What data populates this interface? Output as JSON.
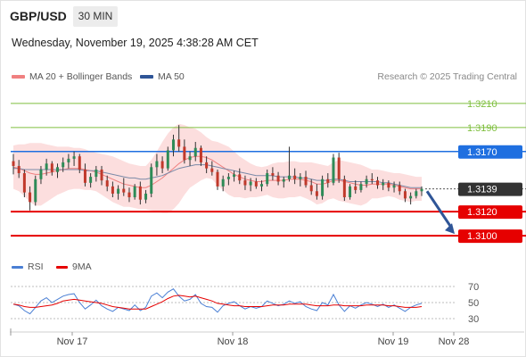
{
  "header": {
    "symbol": "GBP/USD",
    "timeframe": "30 MIN",
    "datetime": "Wednesday, November 19, 2025 4:38:28 AM CET"
  },
  "legend": {
    "items": [
      {
        "label": "MA 20 + Bollinger Bands",
        "color": "#f08080"
      },
      {
        "label": "MA 50",
        "color": "#2f5597"
      }
    ],
    "credit": "Research © 2025 Trading Central"
  },
  "rsi_legend": {
    "items": [
      {
        "label": "RSI",
        "color": "#4a7fd4"
      },
      {
        "label": "9MA",
        "color": "#e60000"
      }
    ]
  },
  "colors": {
    "green_level": "#7fbf3f",
    "blue_level": "#1f6fe0",
    "red_level": "#e60000",
    "last_price": "#333333",
    "bull_candle": "#2e8b57",
    "bear_candle": "#c0392b",
    "band_fill": "#fbd0d0",
    "forecast_arrow": "#2f5597"
  },
  "chart_data": {
    "type": "candlestick",
    "price_range": [
      1.3086,
      1.3224
    ],
    "levels": [
      {
        "value": 1.321,
        "label": "1.3210",
        "kind": "resistance",
        "color": "#7fbf3f"
      },
      {
        "value": 1.319,
        "label": "1.3190",
        "kind": "resistance",
        "color": "#7fbf3f"
      },
      {
        "value": 1.317,
        "label": "1.3170",
        "kind": "pivot",
        "color": "#1f6fe0"
      },
      {
        "value": 1.312,
        "label": "1.3120",
        "kind": "support",
        "color": "#e60000"
      },
      {
        "value": 1.31,
        "label": "1.3100",
        "kind": "support",
        "color": "#e60000"
      }
    ],
    "last_price": {
      "value": 1.3139,
      "label": "1.3139"
    },
    "forecast_arrow": {
      "from": 1.3137,
      "to": 1.31
    },
    "x_labels": [
      "Nov 17",
      "Nov 18",
      "Nov 19",
      "Nov 28"
    ],
    "candles": [
      [
        1.3162,
        1.3168,
        1.3151,
        1.3158
      ],
      [
        1.3158,
        1.3163,
        1.3148,
        1.3152
      ],
      [
        1.3152,
        1.3155,
        1.3132,
        1.3136
      ],
      [
        1.3136,
        1.3141,
        1.3121,
        1.3128
      ],
      [
        1.3128,
        1.315,
        1.3125,
        1.3147
      ],
      [
        1.3147,
        1.3158,
        1.3143,
        1.3155
      ],
      [
        1.3155,
        1.3164,
        1.315,
        1.316
      ],
      [
        1.316,
        1.3162,
        1.315,
        1.3153
      ],
      [
        1.3153,
        1.316,
        1.3148,
        1.3157
      ],
      [
        1.3157,
        1.3165,
        1.3153,
        1.3161
      ],
      [
        1.3161,
        1.3168,
        1.3156,
        1.3164
      ],
      [
        1.3164,
        1.317,
        1.3158,
        1.3166
      ],
      [
        1.3166,
        1.3168,
        1.3152,
        1.3155
      ],
      [
        1.3155,
        1.316,
        1.3141,
        1.3144
      ],
      [
        1.3144,
        1.3152,
        1.314,
        1.3149
      ],
      [
        1.3149,
        1.3158,
        1.3145,
        1.3155
      ],
      [
        1.3155,
        1.3158,
        1.3142,
        1.3146
      ],
      [
        1.3146,
        1.315,
        1.3137,
        1.3141
      ],
      [
        1.3141,
        1.3145,
        1.3132,
        1.3135
      ],
      [
        1.3135,
        1.3142,
        1.313,
        1.3139
      ],
      [
        1.3139,
        1.3148,
        1.3133,
        1.3136
      ],
      [
        1.3136,
        1.314,
        1.3128,
        1.3132
      ],
      [
        1.3132,
        1.3143,
        1.313,
        1.3141
      ],
      [
        1.3141,
        1.3145,
        1.3126,
        1.313
      ],
      [
        1.313,
        1.3138,
        1.3127,
        1.3135
      ],
      [
        1.3135,
        1.316,
        1.3132,
        1.3157
      ],
      [
        1.3157,
        1.3168,
        1.315,
        1.3162
      ],
      [
        1.3162,
        1.3166,
        1.3152,
        1.3156
      ],
      [
        1.3156,
        1.3174,
        1.3154,
        1.3171
      ],
      [
        1.3171,
        1.3184,
        1.3166,
        1.318
      ],
      [
        1.318,
        1.3192,
        1.317,
        1.3174
      ],
      [
        1.3174,
        1.318,
        1.316,
        1.3163
      ],
      [
        1.3163,
        1.317,
        1.3158,
        1.3166
      ],
      [
        1.3166,
        1.3178,
        1.3162,
        1.3173
      ],
      [
        1.3173,
        1.3175,
        1.3158,
        1.3161
      ],
      [
        1.3161,
        1.3166,
        1.3152,
        1.3156
      ],
      [
        1.3156,
        1.3162,
        1.315,
        1.3153
      ],
      [
        1.3153,
        1.3155,
        1.3138,
        1.3141
      ],
      [
        1.3141,
        1.315,
        1.3137,
        1.3147
      ],
      [
        1.3147,
        1.3152,
        1.3142,
        1.3149
      ],
      [
        1.3149,
        1.3154,
        1.3145,
        1.3151
      ],
      [
        1.3151,
        1.3156,
        1.3143,
        1.3146
      ],
      [
        1.3146,
        1.315,
        1.3138,
        1.3142
      ],
      [
        1.3142,
        1.3148,
        1.3137,
        1.3145
      ],
      [
        1.3145,
        1.3148,
        1.3139,
        1.3141
      ],
      [
        1.3141,
        1.3146,
        1.3137,
        1.3143
      ],
      [
        1.3143,
        1.3155,
        1.3141,
        1.3152
      ],
      [
        1.3152,
        1.3157,
        1.3146,
        1.315
      ],
      [
        1.315,
        1.3153,
        1.3142,
        1.3145
      ],
      [
        1.3145,
        1.3149,
        1.314,
        1.3147
      ],
      [
        1.3147,
        1.3174,
        1.3145,
        1.315
      ],
      [
        1.315,
        1.3156,
        1.3143,
        1.3147
      ],
      [
        1.3147,
        1.3152,
        1.3141,
        1.3149
      ],
      [
        1.3149,
        1.3154,
        1.314,
        1.3142
      ],
      [
        1.3142,
        1.3147,
        1.3134,
        1.3137
      ],
      [
        1.3137,
        1.3143,
        1.313,
        1.3133
      ],
      [
        1.3133,
        1.315,
        1.313,
        1.3147
      ],
      [
        1.3147,
        1.3152,
        1.314,
        1.3144
      ],
      [
        1.3144,
        1.3168,
        1.3142,
        1.3165
      ],
      [
        1.3165,
        1.3169,
        1.3144,
        1.3147
      ],
      [
        1.3147,
        1.315,
        1.3129,
        1.3132
      ],
      [
        1.3132,
        1.3143,
        1.313,
        1.3141
      ],
      [
        1.3141,
        1.3146,
        1.3135,
        1.3138
      ],
      [
        1.3138,
        1.3145,
        1.3136,
        1.3143
      ],
      [
        1.3143,
        1.315,
        1.314,
        1.3147
      ],
      [
        1.3147,
        1.3152,
        1.3143,
        1.3146
      ],
      [
        1.3146,
        1.3149,
        1.3139,
        1.3142
      ],
      [
        1.3142,
        1.3147,
        1.3138,
        1.3144
      ],
      [
        1.3144,
        1.3146,
        1.3137,
        1.314
      ],
      [
        1.314,
        1.3145,
        1.3136,
        1.3142
      ],
      [
        1.3142,
        1.3145,
        1.3134,
        1.3137
      ],
      [
        1.3137,
        1.3139,
        1.3128,
        1.3131
      ],
      [
        1.3131,
        1.3136,
        1.3126,
        1.3133
      ],
      [
        1.3133,
        1.3139,
        1.3131,
        1.3137
      ],
      [
        1.3137,
        1.3141,
        1.3133,
        1.3139
      ]
    ],
    "ma50": [
      1.3156,
      1.3156,
      1.3155,
      1.3155,
      1.3155,
      1.3155,
      1.3155,
      1.3155,
      1.3155,
      1.3155,
      1.3155,
      1.3155,
      1.3155,
      1.3154,
      1.3154,
      1.3154,
      1.3153,
      1.3152,
      1.3151,
      1.315,
      1.3149,
      1.3148,
      1.3148,
      1.3147,
      1.3147,
      1.3148,
      1.3149,
      1.315,
      1.3152,
      1.3154,
      1.3156,
      1.3157,
      1.3158,
      1.3159,
      1.3159,
      1.3159,
      1.3158,
      1.3157,
      1.3156,
      1.3155,
      1.3154,
      1.3153,
      1.3152,
      1.3151,
      1.315,
      1.315,
      1.315,
      1.315,
      1.3149,
      1.3149,
      1.3149,
      1.3149,
      1.3148,
      1.3148,
      1.3147,
      1.3146,
      1.3146,
      1.3146,
      1.3147,
      1.3147,
      1.3146,
      1.3145,
      1.3145,
      1.3145,
      1.3145,
      1.3145,
      1.3145,
      1.3144,
      1.3144,
      1.3143,
      1.3142,
      1.3141,
      1.314,
      1.314,
      1.314
    ],
    "ma20": [
      1.3157,
      1.3156,
      1.3154,
      1.3152,
      1.3151,
      1.3151,
      1.3152,
      1.3153,
      1.3154,
      1.3155,
      1.3156,
      1.3156,
      1.3156,
      1.3155,
      1.3154,
      1.3153,
      1.3151,
      1.3149,
      1.3147,
      1.3145,
      1.3143,
      1.3142,
      1.3141,
      1.314,
      1.314,
      1.3142,
      1.3145,
      1.3148,
      1.3152,
      1.3156,
      1.316,
      1.3163,
      1.3165,
      1.3166,
      1.3166,
      1.3165,
      1.3163,
      1.316,
      1.3157,
      1.3154,
      1.3151,
      1.3149,
      1.3147,
      1.3146,
      1.3145,
      1.3145,
      1.3146,
      1.3146,
      1.3146,
      1.3146,
      1.3147,
      1.3147,
      1.3147,
      1.3146,
      1.3145,
      1.3143,
      1.3143,
      1.3144,
      1.3146,
      1.3146,
      1.3145,
      1.3144,
      1.3143,
      1.3142,
      1.3142,
      1.3143,
      1.3143,
      1.3143,
      1.3143,
      1.3142,
      1.3141,
      1.314,
      1.3139,
      1.3139,
      1.3139
    ],
    "bb_upper": [
      1.3175,
      1.3176,
      1.3176,
      1.3177,
      1.3177,
      1.3177,
      1.3176,
      1.3175,
      1.3174,
      1.3174,
      1.3174,
      1.3173,
      1.3173,
      1.3172,
      1.317,
      1.3169,
      1.3168,
      1.3167,
      1.3166,
      1.3164,
      1.3162,
      1.316,
      1.3159,
      1.3158,
      1.3158,
      1.3163,
      1.317,
      1.3178,
      1.3185,
      1.319,
      1.3193,
      1.3192,
      1.319,
      1.3189,
      1.3186,
      1.3182,
      1.3179,
      1.3178,
      1.3176,
      1.3174,
      1.317,
      1.3166,
      1.3163,
      1.316,
      1.3158,
      1.3157,
      1.3158,
      1.316,
      1.3161,
      1.3161,
      1.3162,
      1.3162,
      1.3161,
      1.3161,
      1.3161,
      1.316,
      1.3159,
      1.3158,
      1.3161,
      1.3163,
      1.3162,
      1.3161,
      1.316,
      1.3159,
      1.3157,
      1.3155,
      1.3155,
      1.3154,
      1.3153,
      1.3152,
      1.3152,
      1.3151,
      1.315,
      1.3149,
      1.3149
    ],
    "bb_lower": [
      1.3139,
      1.3137,
      1.3133,
      1.3128,
      1.3125,
      1.3125,
      1.3128,
      1.3131,
      1.3134,
      1.3136,
      1.3138,
      1.3139,
      1.3139,
      1.3138,
      1.3138,
      1.3137,
      1.3134,
      1.3131,
      1.3128,
      1.3126,
      1.3124,
      1.3124,
      1.3123,
      1.3122,
      1.3122,
      1.3121,
      1.312,
      1.3119,
      1.3119,
      1.3122,
      1.3127,
      1.3134,
      1.314,
      1.3143,
      1.3146,
      1.3148,
      1.3147,
      1.3142,
      1.3138,
      1.3134,
      1.3132,
      1.3132,
      1.3131,
      1.3132,
      1.3132,
      1.3133,
      1.3134,
      1.3132,
      1.3131,
      1.3131,
      1.3132,
      1.3132,
      1.3133,
      1.3131,
      1.3129,
      1.3126,
      1.3127,
      1.313,
      1.3131,
      1.3129,
      1.3128,
      1.3127,
      1.3126,
      1.3125,
      1.3127,
      1.3131,
      1.3131,
      1.3132,
      1.3133,
      1.3132,
      1.313,
      1.3129,
      1.3128,
      1.3129,
      1.3129
    ],
    "rsi": {
      "range": [
        0,
        100
      ],
      "ticks": [
        70,
        50,
        30
      ],
      "ticks_labels": [
        "70",
        "50",
        "30"
      ],
      "values": [
        48,
        46,
        40,
        36,
        44,
        52,
        56,
        50,
        54,
        58,
        60,
        61,
        50,
        42,
        47,
        53,
        46,
        42,
        39,
        44,
        42,
        40,
        47,
        40,
        44,
        58,
        62,
        56,
        63,
        67,
        58,
        52,
        54,
        60,
        49,
        45,
        44,
        38,
        46,
        49,
        51,
        46,
        42,
        45,
        43,
        45,
        52,
        49,
        46,
        48,
        52,
        49,
        51,
        45,
        42,
        40,
        50,
        47,
        60,
        47,
        39,
        46,
        43,
        47,
        50,
        48,
        45,
        48,
        44,
        47,
        43,
        39,
        44,
        47,
        49
      ],
      "ma9": [
        48,
        47,
        45,
        44,
        44,
        45,
        46,
        47,
        49,
        52,
        53,
        54,
        53,
        52,
        51,
        50,
        49,
        47,
        45,
        44,
        43,
        42,
        42,
        42,
        42,
        45,
        48,
        51,
        55,
        58,
        59,
        58,
        57,
        58,
        56,
        54,
        52,
        49,
        48,
        47,
        46,
        46,
        45,
        45,
        45,
        45,
        46,
        47,
        47,
        47,
        48,
        48,
        48,
        48,
        47,
        46,
        46,
        46,
        47,
        47,
        46,
        46,
        46,
        46,
        47,
        47,
        47,
        47,
        46,
        46,
        45,
        44,
        44,
        44,
        45
      ]
    }
  }
}
